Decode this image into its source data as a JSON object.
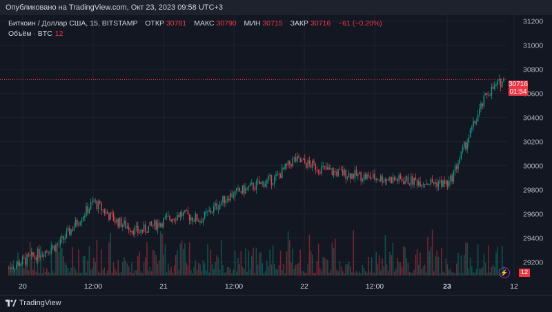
{
  "header": {
    "published": "Опубликовано на TradingView.com, Окт 23, 2023 09:58 UTC+3"
  },
  "legend": {
    "symbol": "Биткоин / Доллар США, 15, BITSTAMP",
    "open_label": "ОТКР",
    "open": "30781",
    "high_label": "МАКС",
    "high": "30790",
    "low_label": "МИН",
    "low": "30715",
    "close_label": "ЗАКР",
    "close": "30716",
    "change": "−61 (−0.20%)",
    "volume_label": "Объём · BTC",
    "volume": "12"
  },
  "price_axis": [
    "31200",
    "31000",
    "30800",
    "30600",
    "30400",
    "30200",
    "30000",
    "29800",
    "29600",
    "29400",
    "29200"
  ],
  "time_axis": [
    "20",
    "12:00",
    "21",
    "12:00",
    "22",
    "12:00",
    "23",
    "12"
  ],
  "current_price": {
    "price": "30716",
    "countdown": "01:54"
  },
  "volume_badge": "12",
  "footer": {
    "brand": "TradingView"
  },
  "colors": {
    "up": "#089981",
    "down": "#f23645",
    "bg": "#131722",
    "grid": "#1f2330"
  },
  "chart_data": {
    "type": "candlestick",
    "ylim": [
      29100,
      31250
    ],
    "x": [
      "Oct 20 00:00",
      "Oct 20 06:00",
      "Oct 20 12:00",
      "Oct 20 18:00",
      "Oct 21 00:00",
      "Oct 21 06:00",
      "Oct 21 12:00",
      "Oct 21 18:00",
      "Oct 22 00:00",
      "Oct 22 06:00",
      "Oct 22 12:00",
      "Oct 22 18:00",
      "Oct 23 00:00",
      "Oct 23 06:00",
      "Oct 23 09:45"
    ],
    "close": [
      29150,
      29350,
      29700,
      29550,
      29450,
      29600,
      29550,
      29750,
      29900,
      30050,
      29950,
      29900,
      29850,
      30600,
      30716
    ]
  }
}
